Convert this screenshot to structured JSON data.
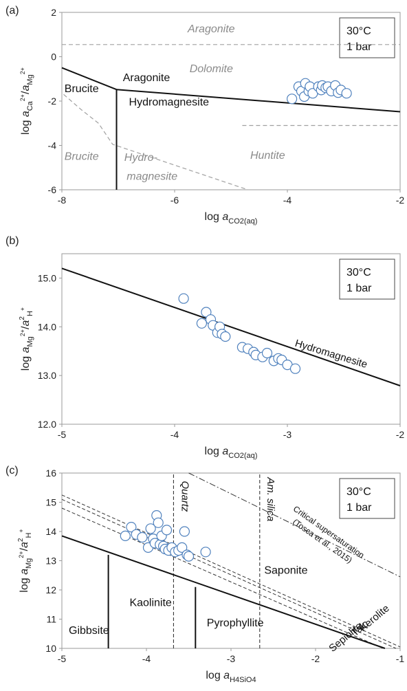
{
  "chart_data": [
    {
      "panel": "(a)",
      "type": "scatter",
      "xlabel": "log a_CO2(aq)",
      "ylabel": "log a_Ca2+/a_Mg2+",
      "xlim": [
        -8,
        -2
      ],
      "ylim": [
        -6,
        2
      ],
      "x_ticks": [
        "-8",
        "-6",
        "-4",
        "-2"
      ],
      "y_ticks": [
        "-6",
        "-4",
        "-2",
        "0",
        "2"
      ],
      "conditions": [
        "30°C",
        "1 bar"
      ],
      "stable_lines": [
        {
          "x": [
            -8,
            -7.03
          ],
          "y": [
            -0.5,
            -1.48
          ]
        },
        {
          "x": [
            -7.03,
            -2
          ],
          "y": [
            -1.48,
            -2.48
          ]
        },
        {
          "x": [
            -7.03,
            -7.03
          ],
          "y": [
            -1.48,
            -6
          ]
        }
      ],
      "metastable_lines": [
        {
          "x": [
            -8,
            -2
          ],
          "y": [
            0.55,
            0.55
          ]
        },
        {
          "x": [
            -4.8,
            -2
          ],
          "y": [
            -3.1,
            -3.1
          ]
        },
        {
          "x": [
            -7.97,
            -7.65,
            -7.35,
            -7.1,
            -4.7
          ],
          "y": [
            -1.7,
            -2.4,
            -3.0,
            -3.95,
            -6.0
          ]
        }
      ],
      "region_labels": [
        {
          "text": "Brucite",
          "x": -7.65,
          "y": -1.6,
          "style": "black"
        },
        {
          "text": "Aragonite",
          "x": -6.5,
          "y": -1.1,
          "style": "black"
        },
        {
          "text": "Hydromagnesite",
          "x": -6.1,
          "y": -2.2,
          "style": "black"
        },
        {
          "text": "Aragonite",
          "x": -5.35,
          "y": 1.1,
          "style": "gray"
        },
        {
          "text": "Dolomite",
          "x": -5.35,
          "y": -0.7,
          "style": "gray"
        },
        {
          "text": "Brucite",
          "x": -7.65,
          "y": -4.65,
          "style": "gray"
        },
        {
          "text": "Hydro-",
          "x": -6.6,
          "y": -4.7,
          "style": "gray"
        },
        {
          "text": "magnesite",
          "x": -6.4,
          "y": -5.55,
          "style": "gray"
        },
        {
          "text": "Huntite",
          "x": -4.35,
          "y": -4.6,
          "style": "gray"
        }
      ],
      "points": [
        {
          "x": -3.92,
          "y": -1.9
        },
        {
          "x": -3.8,
          "y": -1.35
        },
        {
          "x": -3.75,
          "y": -1.55
        },
        {
          "x": -3.7,
          "y": -1.8
        },
        {
          "x": -3.68,
          "y": -1.2
        },
        {
          "x": -3.62,
          "y": -1.55
        },
        {
          "x": -3.6,
          "y": -1.35
        },
        {
          "x": -3.55,
          "y": -1.65
        },
        {
          "x": -3.45,
          "y": -1.35
        },
        {
          "x": -3.4,
          "y": -1.5
        },
        {
          "x": -3.38,
          "y": -1.3
        },
        {
          "x": -3.32,
          "y": -1.4
        },
        {
          "x": -3.28,
          "y": -1.35
        },
        {
          "x": -3.22,
          "y": -1.55
        },
        {
          "x": -3.15,
          "y": -1.3
        },
        {
          "x": -3.1,
          "y": -1.62
        },
        {
          "x": -3.05,
          "y": -1.5
        },
        {
          "x": -2.95,
          "y": -1.65
        }
      ]
    },
    {
      "panel": "(b)",
      "type": "scatter",
      "xlabel": "log a_CO2(aq)",
      "ylabel": "log a_Mg2+/a2_H+",
      "xlim": [
        -5,
        -2
      ],
      "ylim": [
        12.0,
        15.5
      ],
      "x_ticks": [
        "-5",
        "-4",
        "-3",
        "-2"
      ],
      "y_ticks": [
        "12.0",
        "13.0",
        "14.0",
        "15.0"
      ],
      "conditions": [
        "30°C",
        "1 bar"
      ],
      "stable_lines": [
        {
          "x": [
            -5,
            -2
          ],
          "y": [
            15.2,
            12.79
          ]
        }
      ],
      "line_labels": [
        {
          "text": "Hydromagnesite",
          "x": -2.62,
          "y": 13.38,
          "angle": 17
        }
      ],
      "points": [
        {
          "x": -3.92,
          "y": 14.58
        },
        {
          "x": -3.76,
          "y": 14.07
        },
        {
          "x": -3.72,
          "y": 14.3
        },
        {
          "x": -3.68,
          "y": 14.15
        },
        {
          "x": -3.66,
          "y": 14.03
        },
        {
          "x": -3.62,
          "y": 13.88
        },
        {
          "x": -3.6,
          "y": 14.0
        },
        {
          "x": -3.58,
          "y": 13.85
        },
        {
          "x": -3.55,
          "y": 13.8
        },
        {
          "x": -3.4,
          "y": 13.58
        },
        {
          "x": -3.35,
          "y": 13.55
        },
        {
          "x": -3.3,
          "y": 13.48
        },
        {
          "x": -3.28,
          "y": 13.42
        },
        {
          "x": -3.22,
          "y": 13.38
        },
        {
          "x": -3.18,
          "y": 13.46
        },
        {
          "x": -3.12,
          "y": 13.3
        },
        {
          "x": -3.08,
          "y": 13.35
        },
        {
          "x": -3.05,
          "y": 13.32
        },
        {
          "x": -3.0,
          "y": 13.22
        },
        {
          "x": -2.93,
          "y": 13.14
        }
      ]
    },
    {
      "panel": "(c)",
      "type": "scatter",
      "xlabel": "log a_H4SiO4",
      "ylabel": "log a_Mg2+/a2_H+",
      "xlim": [
        -5,
        -1
      ],
      "ylim": [
        10,
        16
      ],
      "x_ticks": [
        "-5",
        "-4",
        "-3",
        "-2",
        "-1"
      ],
      "y_ticks": [
        "10",
        "11",
        "12",
        "13",
        "14",
        "15",
        "16"
      ],
      "conditions": [
        "30°C",
        "1 bar"
      ],
      "stable_lines": [
        {
          "x": [
            -5,
            -1.18
          ],
          "y": [
            13.85,
            10
          ]
        },
        {
          "x": [
            -4.45,
            -4.45
          ],
          "y": [
            10,
            13.2
          ]
        },
        {
          "x": [
            -3.42,
            -3.42
          ],
          "y": [
            10,
            12.1
          ]
        }
      ],
      "mineral_lines": [
        {
          "x": [
            -5,
            -1.0
          ],
          "y": [
            15.25,
            10.05
          ]
        },
        {
          "x": [
            -5,
            -1.05
          ],
          "y": [
            15.1,
            10.0
          ]
        },
        {
          "x": [
            -5,
            -1.2
          ],
          "y": [
            14.8,
            10.0
          ]
        }
      ],
      "silica_lines": [
        {
          "x": [
            -3.68,
            -3.68
          ],
          "y": [
            10,
            16
          ]
        },
        {
          "x": [
            -2.66,
            -2.66
          ],
          "y": [
            10,
            16
          ]
        }
      ],
      "critical_line": {
        "x": [
          -3.5,
          -1.0
        ],
        "y": [
          16.0,
          12.45
        ]
      },
      "region_labels": [
        {
          "text": "Gibbsite",
          "x": -4.68,
          "y": 10.5
        },
        {
          "text": "Kaolinite",
          "x": -3.95,
          "y": 11.45
        },
        {
          "text": "Pyrophyllite",
          "x": -2.95,
          "y": 10.75
        },
        {
          "text": "Saponite",
          "x": -2.35,
          "y": 12.55
        }
      ],
      "line_labels": [
        {
          "text": "Quartz",
          "x": -3.58,
          "y": 15.2,
          "angle": 90
        },
        {
          "text": "Am. silica",
          "x": -2.57,
          "y": 15.1,
          "angle": 90
        },
        {
          "text": "Kerolite",
          "x": -1.28,
          "y": 10.95,
          "angle": -40
        },
        {
          "text": "Talc",
          "x": -1.45,
          "y": 10.6,
          "angle": -40
        },
        {
          "text": "Sepiolite",
          "x": -1.62,
          "y": 10.3,
          "angle": -40
        }
      ],
      "annotation": [
        "Critical supersaturation",
        "(Tosca et al., 2015)"
      ],
      "points": [
        {
          "x": -4.25,
          "y": 13.85
        },
        {
          "x": -4.18,
          "y": 14.15
        },
        {
          "x": -4.12,
          "y": 13.9
        },
        {
          "x": -4.05,
          "y": 13.8
        },
        {
          "x": -3.98,
          "y": 13.45
        },
        {
          "x": -3.95,
          "y": 14.1
        },
        {
          "x": -3.92,
          "y": 13.75
        },
        {
          "x": -3.9,
          "y": 13.6
        },
        {
          "x": -3.88,
          "y": 14.55
        },
        {
          "x": -3.86,
          "y": 14.3
        },
        {
          "x": -3.84,
          "y": 13.55
        },
        {
          "x": -3.82,
          "y": 13.85
        },
        {
          "x": -3.8,
          "y": 13.5
        },
        {
          "x": -3.78,
          "y": 13.4
        },
        {
          "x": -3.76,
          "y": 14.05
        },
        {
          "x": -3.74,
          "y": 13.35
        },
        {
          "x": -3.7,
          "y": 13.45
        },
        {
          "x": -3.66,
          "y": 13.3
        },
        {
          "x": -3.62,
          "y": 13.35
        },
        {
          "x": -3.58,
          "y": 13.45
        },
        {
          "x": -3.55,
          "y": 14.0
        },
        {
          "x": -3.52,
          "y": 13.2
        },
        {
          "x": -3.5,
          "y": 13.15
        },
        {
          "x": -3.3,
          "y": 13.3
        }
      ]
    }
  ]
}
